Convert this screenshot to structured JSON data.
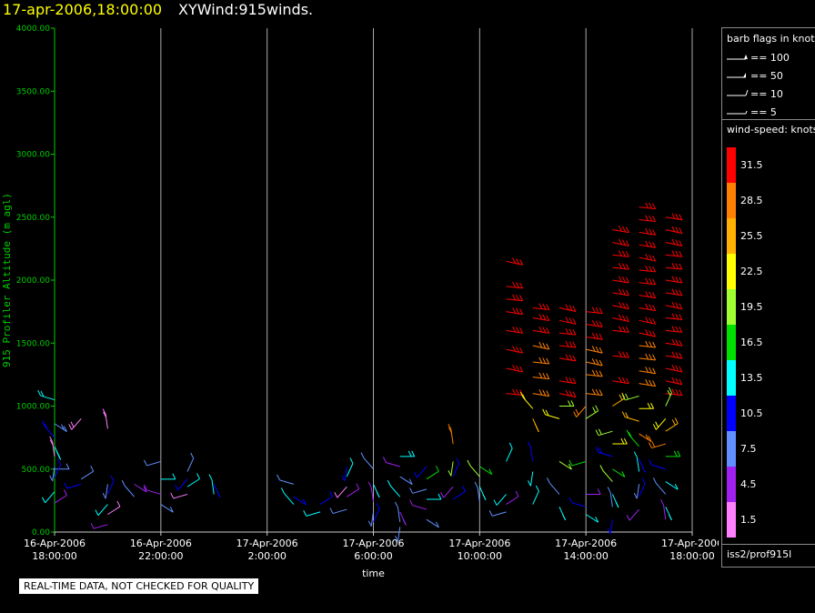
{
  "header": {
    "time_label": "17-apr-2006,18:00:00",
    "product_label": "XYWind:915winds."
  },
  "colors": {
    "axis": "#00cc00",
    "gridline": "#aaaaaa",
    "background": "#000000",
    "text": "#ffffff",
    "title_time": "#ffff00"
  },
  "chart_data": {
    "type": "scatter",
    "title": "",
    "xlabel": "time",
    "ylabel": "915 Profiler Altitude (m agl)",
    "xlim": [
      "2006-04-16 18:00",
      "2006-04-17 18:00"
    ],
    "ylim": [
      0,
      4000
    ],
    "grid": "vertical at each x tick",
    "y_ticks": [
      "0.00",
      "500.00",
      "1000.00",
      "1500.00",
      "2000.00",
      "2500.00",
      "3000.00",
      "3500.00",
      "4000.00"
    ],
    "x_ticks": [
      {
        "date": "16-Apr-2006",
        "time": "18:00:00"
      },
      {
        "date": "16-Apr-2006",
        "time": "22:00:00"
      },
      {
        "date": "17-Apr-2006",
        "time": "2:00:00"
      },
      {
        "date": "17-Apr-2006",
        "time": "6:00:00"
      },
      {
        "date": "17-Apr-2006",
        "time": "10:00:00"
      },
      {
        "date": "17-Apr-2006",
        "time": "14:00:00"
      },
      {
        "date": "17-Apr-2006",
        "time": "18:00:00"
      }
    ],
    "barb_legend": {
      "title": "barb flags in knots",
      "items": [
        "== 100",
        "== 50",
        "== 10",
        "== 5"
      ]
    },
    "speed_legend": {
      "title": "wind-speed: knots",
      "bins": [
        {
          "label": "31.5",
          "color": "#ff0000"
        },
        {
          "label": "28.5",
          "color": "#ff8000"
        },
        {
          "label": "25.5",
          "color": "#ffb000"
        },
        {
          "label": "22.5",
          "color": "#ffff00"
        },
        {
          "label": "19.5",
          "color": "#a0ff30"
        },
        {
          "label": "16.5",
          "color": "#00e000"
        },
        {
          "label": "13.5",
          "color": "#00ffff"
        },
        {
          "label": "10.5",
          "color": "#0000ff"
        },
        {
          "label": "7.5",
          "color": "#6090ff"
        },
        {
          "label": "4.5",
          "color": "#a020f0"
        },
        {
          "label": "1.5",
          "color": "#ff80ff"
        }
      ]
    },
    "wind_obs": [
      {
        "t": "2006-04-16 18:00",
        "alt": [
          500,
          1050,
          860,
          750,
          680,
          600,
          520,
          430,
          320,
          230
        ]
      },
      {
        "t": "2006-04-16 19:00",
        "alt": [
          900,
          420,
          380
        ]
      },
      {
        "t": "2006-04-16 20:00",
        "alt": [
          820,
          380,
          300,
          220,
          140,
          60
        ]
      },
      {
        "t": "2006-04-16 21:00",
        "alt": [
          380,
          280
        ]
      },
      {
        "t": "2006-04-16 22:00",
        "alt": [
          560,
          420,
          300,
          220
        ]
      },
      {
        "t": "2006-04-16 23:00",
        "alt": [
          480,
          420,
          360,
          300
        ]
      },
      {
        "t": "2006-04-17 00:00",
        "alt": [
          380,
          300
        ]
      },
      {
        "t": "2006-04-17 03:00",
        "alt": [
          380,
          280,
          220
        ]
      },
      {
        "t": "2006-04-17 04:00",
        "alt": [
          220,
          160
        ]
      },
      {
        "t": "2006-04-17 05:00",
        "alt": [
          520,
          440,
          360,
          280,
          180
        ]
      },
      {
        "t": "2006-04-17 06:00",
        "alt": [
          500,
          380,
          240,
          160,
          80
        ]
      },
      {
        "t": "2006-04-17 07:00",
        "alt": [
          600,
          520,
          440,
          280,
          160,
          80,
          40
        ]
      },
      {
        "t": "2006-04-17 08:00",
        "alt": [
          520,
          420,
          340,
          260,
          180,
          100
        ]
      },
      {
        "t": "2006-04-17 09:00",
        "alt": [
          700,
          560,
          440,
          360,
          260
        ]
      },
      {
        "t": "2006-04-17 10:00",
        "alt": [
          520,
          440,
          360,
          240
        ]
      },
      {
        "t": "2006-04-17 11:00",
        "alt": [
          2150,
          1950,
          1850,
          1750,
          1600,
          1450,
          1300,
          1100,
          560,
          300,
          220,
          160
        ]
      },
      {
        "t": "2006-04-17 12:00",
        "alt": [
          1780,
          1700,
          1600,
          1480,
          1350,
          1230,
          1100,
          980,
          900,
          560,
          480,
          220
        ]
      },
      {
        "t": "2006-04-17 13:00",
        "alt": [
          1780,
          1680,
          1580,
          1480,
          1380,
          1200,
          1100,
          1000,
          900,
          560,
          300,
          200
        ]
      },
      {
        "t": "2006-04-17 14:00",
        "alt": [
          1750,
          1650,
          1550,
          1450,
          1350,
          1250,
          1100,
          1000,
          900,
          560,
          300,
          200,
          140
        ]
      },
      {
        "t": "2006-04-17 15:00",
        "alt": [
          2400,
          2300,
          2200,
          2100,
          2000,
          1900,
          1800,
          1700,
          1600,
          1400,
          1200,
          1000,
          800,
          700,
          600,
          500,
          400,
          300,
          200,
          100
        ]
      },
      {
        "t": "2006-04-17 16:00",
        "alt": [
          2580,
          2480,
          2380,
          2280,
          2180,
          2080,
          1980,
          1880,
          1780,
          1680,
          1580,
          1480,
          1380,
          1280,
          1180,
          1080,
          980,
          880,
          780,
          680,
          580,
          480,
          380,
          280,
          180
        ]
      },
      {
        "t": "2006-04-17 17:00",
        "alt": [
          2500,
          2400,
          2300,
          2200,
          2100,
          2000,
          1900,
          1800,
          1700,
          1600,
          1500,
          1400,
          1300,
          1200,
          1100,
          1000,
          900,
          800,
          700,
          600,
          500,
          400,
          300,
          200,
          100
        ]
      }
    ]
  },
  "source": {
    "label": "iss2/prof915l"
  },
  "notice": {
    "text": "REAL-TIME DATA, NOT CHECKED FOR QUALITY"
  }
}
